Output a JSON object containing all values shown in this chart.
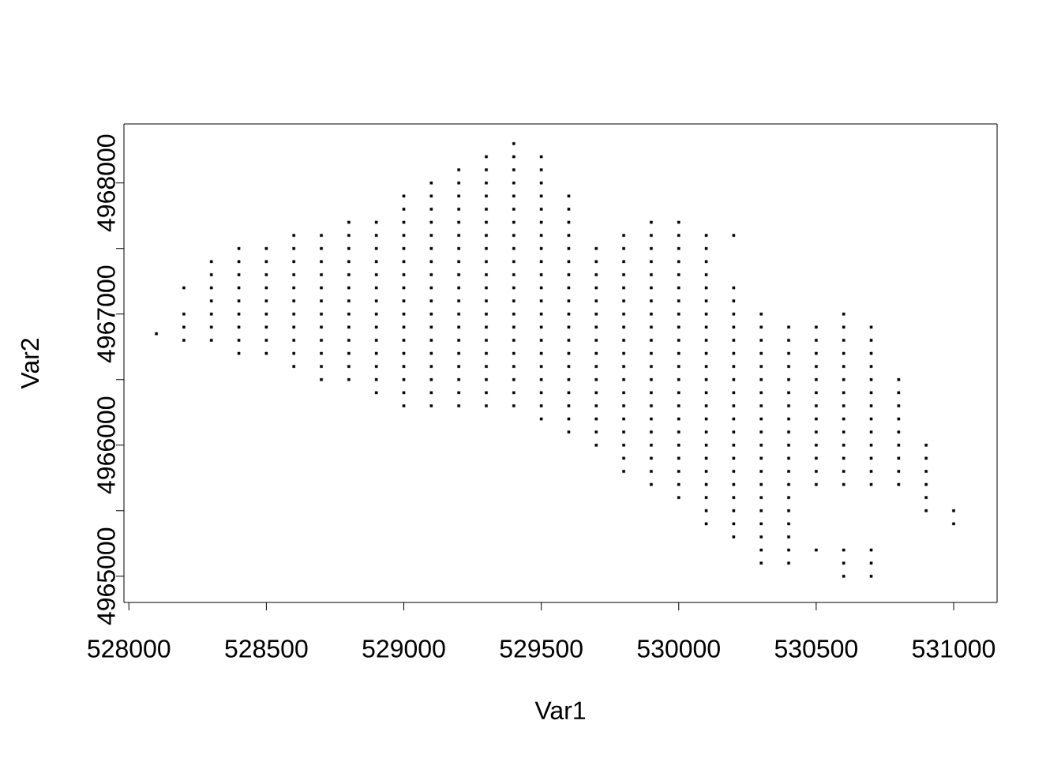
{
  "chart_data": {
    "type": "scatter",
    "xlabel": "Var1",
    "ylabel": "Var2",
    "color": "#000000",
    "marker": "square",
    "xlim": [
      527982,
      531158
    ],
    "ylim": [
      4964800,
      4968450
    ],
    "xticks": [
      528000,
      528500,
      529000,
      529500,
      530000,
      530500,
      531000
    ],
    "yticks": [
      4965000,
      {
        "value": 4965500,
        "label": null
      },
      4966000,
      {
        "value": 4966500,
        "label": null
      },
      4967000,
      {
        "value": 4967500,
        "label": null
      },
      4968000
    ],
    "x": [
      528100,
      528200,
      528200,
      528200,
      528200,
      528300,
      528300,
      528300,
      528300,
      528300,
      528300,
      528300,
      528400,
      528400,
      528400,
      528400,
      528400,
      528400,
      528400,
      528400,
      528400,
      528500,
      528500,
      528500,
      528500,
      528500,
      528500,
      528500,
      528500,
      528500,
      528600,
      528600,
      528600,
      528600,
      528600,
      528600,
      528600,
      528600,
      528600,
      528600,
      528600,
      528700,
      528700,
      528700,
      528700,
      528700,
      528700,
      528700,
      528700,
      528700,
      528700,
      528700,
      528700,
      528800,
      528800,
      528800,
      528800,
      528800,
      528800,
      528800,
      528800,
      528800,
      528800,
      528800,
      528800,
      528800,
      528900,
      528900,
      528900,
      528900,
      528900,
      528900,
      528900,
      528900,
      528900,
      528900,
      528900,
      528900,
      528900,
      528900,
      529000,
      529000,
      529000,
      529000,
      529000,
      529000,
      529000,
      529000,
      529000,
      529000,
      529000,
      529000,
      529000,
      529000,
      529000,
      529000,
      529000,
      529100,
      529100,
      529100,
      529100,
      529100,
      529100,
      529100,
      529100,
      529100,
      529100,
      529100,
      529100,
      529100,
      529100,
      529100,
      529100,
      529100,
      529100,
      529200,
      529200,
      529200,
      529200,
      529200,
      529200,
      529200,
      529200,
      529200,
      529200,
      529200,
      529200,
      529200,
      529200,
      529200,
      529200,
      529200,
      529200,
      529200,
      529300,
      529300,
      529300,
      529300,
      529300,
      529300,
      529300,
      529300,
      529300,
      529300,
      529300,
      529300,
      529300,
      529300,
      529300,
      529300,
      529300,
      529300,
      529300,
      529300,
      529400,
      529400,
      529400,
      529400,
      529400,
      529400,
      529400,
      529400,
      529400,
      529400,
      529400,
      529400,
      529400,
      529400,
      529400,
      529400,
      529400,
      529400,
      529400,
      529400,
      529400,
      529500,
      529500,
      529500,
      529500,
      529500,
      529500,
      529500,
      529500,
      529500,
      529500,
      529500,
      529500,
      529500,
      529500,
      529500,
      529500,
      529500,
      529500,
      529500,
      529500,
      529500,
      529600,
      529600,
      529600,
      529600,
      529600,
      529600,
      529600,
      529600,
      529600,
      529600,
      529600,
      529600,
      529600,
      529600,
      529600,
      529600,
      529600,
      529600,
      529600,
      529700,
      529700,
      529700,
      529700,
      529700,
      529700,
      529700,
      529700,
      529700,
      529700,
      529700,
      529700,
      529700,
      529700,
      529700,
      529700,
      529800,
      529800,
      529800,
      529800,
      529800,
      529800,
      529800,
      529800,
      529800,
      529800,
      529800,
      529800,
      529800,
      529800,
      529800,
      529800,
      529800,
      529800,
      529800,
      529900,
      529900,
      529900,
      529900,
      529900,
      529900,
      529900,
      529900,
      529900,
      529900,
      529900,
      529900,
      529900,
      529900,
      529900,
      529900,
      529900,
      529900,
      529900,
      529900,
      529900,
      530000,
      530000,
      530000,
      530000,
      530000,
      530000,
      530000,
      530000,
      530000,
      530000,
      530000,
      530000,
      530000,
      530000,
      530000,
      530000,
      530000,
      530000,
      530000,
      530000,
      530000,
      530000,
      530100,
      530100,
      530100,
      530100,
      530100,
      530100,
      530100,
      530100,
      530100,
      530100,
      530100,
      530100,
      530100,
      530100,
      530100,
      530100,
      530100,
      530100,
      530100,
      530100,
      530100,
      530100,
      530100,
      530200,
      530200,
      530200,
      530200,
      530200,
      530200,
      530200,
      530200,
      530200,
      530200,
      530200,
      530200,
      530200,
      530200,
      530200,
      530200,
      530200,
      530200,
      530200,
      530200,
      530200,
      530300,
      530300,
      530300,
      530300,
      530300,
      530300,
      530300,
      530300,
      530300,
      530300,
      530300,
      530300,
      530300,
      530300,
      530300,
      530300,
      530300,
      530300,
      530300,
      530300,
      530400,
      530400,
      530400,
      530400,
      530400,
      530400,
      530400,
      530400,
      530400,
      530400,
      530400,
      530400,
      530400,
      530400,
      530400,
      530400,
      530400,
      530400,
      530400,
      530500,
      530500,
      530500,
      530500,
      530500,
      530500,
      530500,
      530500,
      530500,
      530500,
      530500,
      530500,
      530500,
      530500,
      530600,
      530600,
      530600,
      530600,
      530600,
      530600,
      530600,
      530600,
      530600,
      530600,
      530600,
      530600,
      530600,
      530600,
      530600,
      530600,
      530600,
      530700,
      530700,
      530700,
      530700,
      530700,
      530700,
      530700,
      530700,
      530700,
      530700,
      530700,
      530700,
      530700,
      530700,
      530700,
      530700,
      530800,
      530800,
      530800,
      530800,
      530800,
      530800,
      530800,
      530800,
      530800,
      530900,
      530900,
      530900,
      530900,
      530900,
      530900,
      531000,
      531000
    ],
    "values": [
      4966850,
      4966800,
      4966900,
      4967000,
      4967200,
      4966800,
      4966900,
      4967000,
      4967100,
      4967200,
      4967300,
      4967400,
      4966700,
      4966800,
      4966900,
      4967000,
      4967100,
      4967200,
      4967300,
      4967400,
      4967500,
      4966700,
      4966800,
      4966900,
      4967000,
      4967100,
      4967200,
      4967300,
      4967400,
      4967500,
      4966600,
      4966700,
      4966800,
      4966900,
      4967000,
      4967100,
      4967200,
      4967300,
      4967400,
      4967500,
      4967600,
      4966500,
      4966600,
      4966700,
      4966800,
      4966900,
      4967000,
      4967100,
      4967200,
      4967300,
      4967400,
      4967500,
      4967600,
      4966500,
      4966600,
      4966700,
      4966800,
      4966900,
      4967000,
      4967100,
      4967200,
      4967300,
      4967400,
      4967500,
      4967600,
      4967700,
      4966400,
      4966500,
      4966600,
      4966700,
      4966800,
      4966900,
      4967000,
      4967100,
      4967200,
      4967300,
      4967400,
      4967500,
      4967600,
      4967700,
      4966300,
      4966400,
      4966500,
      4966600,
      4966700,
      4966800,
      4966900,
      4967000,
      4967100,
      4967200,
      4967300,
      4967400,
      4967500,
      4967600,
      4967700,
      4967800,
      4967900,
      4966300,
      4966400,
      4966500,
      4966600,
      4966700,
      4966800,
      4966900,
      4967000,
      4967100,
      4967200,
      4967300,
      4967400,
      4967500,
      4967600,
      4967700,
      4967800,
      4967900,
      4968000,
      4966300,
      4966400,
      4966500,
      4966600,
      4966700,
      4966800,
      4966900,
      4967000,
      4967100,
      4967200,
      4967300,
      4967400,
      4967500,
      4967600,
      4967700,
      4967800,
      4967900,
      4968000,
      4968100,
      4966300,
      4966400,
      4966500,
      4966600,
      4966700,
      4966800,
      4966900,
      4967000,
      4967100,
      4967200,
      4967300,
      4967400,
      4967500,
      4967600,
      4967700,
      4967800,
      4967900,
      4968000,
      4968100,
      4968200,
      4966300,
      4966400,
      4966500,
      4966600,
      4966700,
      4966800,
      4966900,
      4967000,
      4967100,
      4967200,
      4967300,
      4967400,
      4967500,
      4967600,
      4967700,
      4967800,
      4967900,
      4968000,
      4968100,
      4968200,
      4968300,
      4966200,
      4966300,
      4966400,
      4966500,
      4966600,
      4966700,
      4966800,
      4966900,
      4967000,
      4967100,
      4967200,
      4967300,
      4967400,
      4967500,
      4967600,
      4967700,
      4967800,
      4967900,
      4968000,
      4968100,
      4968200,
      4966100,
      4966200,
      4966300,
      4966400,
      4966500,
      4966600,
      4966700,
      4966800,
      4966900,
      4967000,
      4967100,
      4967200,
      4967300,
      4967400,
      4967500,
      4967600,
      4967700,
      4967800,
      4967900,
      4966000,
      4966100,
      4966200,
      4966300,
      4966400,
      4966500,
      4966600,
      4966700,
      4966800,
      4966900,
      4967000,
      4967100,
      4967200,
      4967300,
      4967400,
      4967500,
      4965800,
      4965900,
      4966000,
      4966100,
      4966200,
      4966300,
      4966400,
      4966500,
      4966600,
      4966700,
      4966800,
      4966900,
      4967000,
      4967100,
      4967200,
      4967300,
      4967400,
      4967500,
      4967600,
      4965700,
      4965800,
      4965900,
      4966000,
      4966100,
      4966200,
      4966300,
      4966400,
      4966500,
      4966600,
      4966700,
      4966800,
      4966900,
      4967000,
      4967100,
      4967200,
      4967300,
      4967400,
      4967500,
      4967600,
      4967700,
      4965600,
      4965700,
      4965800,
      4965900,
      4966000,
      4966100,
      4966200,
      4966300,
      4966400,
      4966500,
      4966600,
      4966700,
      4966800,
      4966900,
      4967000,
      4967100,
      4967200,
      4967300,
      4967400,
      4967500,
      4967600,
      4967700,
      4965400,
      4965500,
      4965600,
      4965700,
      4965800,
      4965900,
      4966000,
      4966100,
      4966200,
      4966300,
      4966400,
      4966500,
      4966600,
      4966700,
      4966800,
      4966900,
      4967000,
      4967100,
      4967200,
      4967300,
      4967400,
      4967500,
      4967600,
      4965300,
      4965400,
      4965500,
      4965600,
      4965700,
      4965800,
      4965900,
      4966000,
      4966100,
      4966200,
      4966300,
      4966400,
      4966500,
      4966600,
      4966700,
      4966800,
      4966900,
      4967000,
      4967100,
      4967200,
      4967600,
      4965100,
      4965200,
      4965300,
      4965400,
      4965500,
      4965600,
      4965700,
      4965800,
      4965900,
      4966000,
      4966100,
      4966200,
      4966300,
      4966400,
      4966500,
      4966600,
      4966700,
      4966800,
      4966900,
      4967000,
      4965100,
      4965200,
      4965300,
      4965400,
      4965500,
      4965600,
      4965700,
      4965800,
      4965900,
      4966000,
      4966100,
      4966200,
      4966300,
      4966400,
      4966500,
      4966600,
      4966700,
      4966800,
      4966900,
      4965200,
      4965700,
      4965800,
      4965900,
      4966000,
      4966100,
      4966200,
      4966300,
      4966400,
      4966500,
      4966600,
      4966700,
      4966800,
      4966900,
      4965000,
      4965100,
      4965200,
      4965700,
      4965800,
      4965900,
      4966000,
      4966100,
      4966200,
      4966300,
      4966400,
      4966500,
      4966600,
      4966700,
      4966800,
      4966900,
      4967000,
      4965000,
      4965100,
      4965200,
      4965700,
      4965800,
      4965900,
      4966000,
      4966100,
      4966200,
      4966300,
      4966400,
      4966500,
      4966600,
      4966700,
      4966800,
      4966900,
      4965700,
      4965800,
      4965900,
      4966000,
      4966100,
      4966200,
      4966300,
      4966400,
      4966500,
      4965500,
      4965600,
      4965700,
      4965800,
      4965900,
      4966000,
      4965400,
      4965500
    ]
  }
}
